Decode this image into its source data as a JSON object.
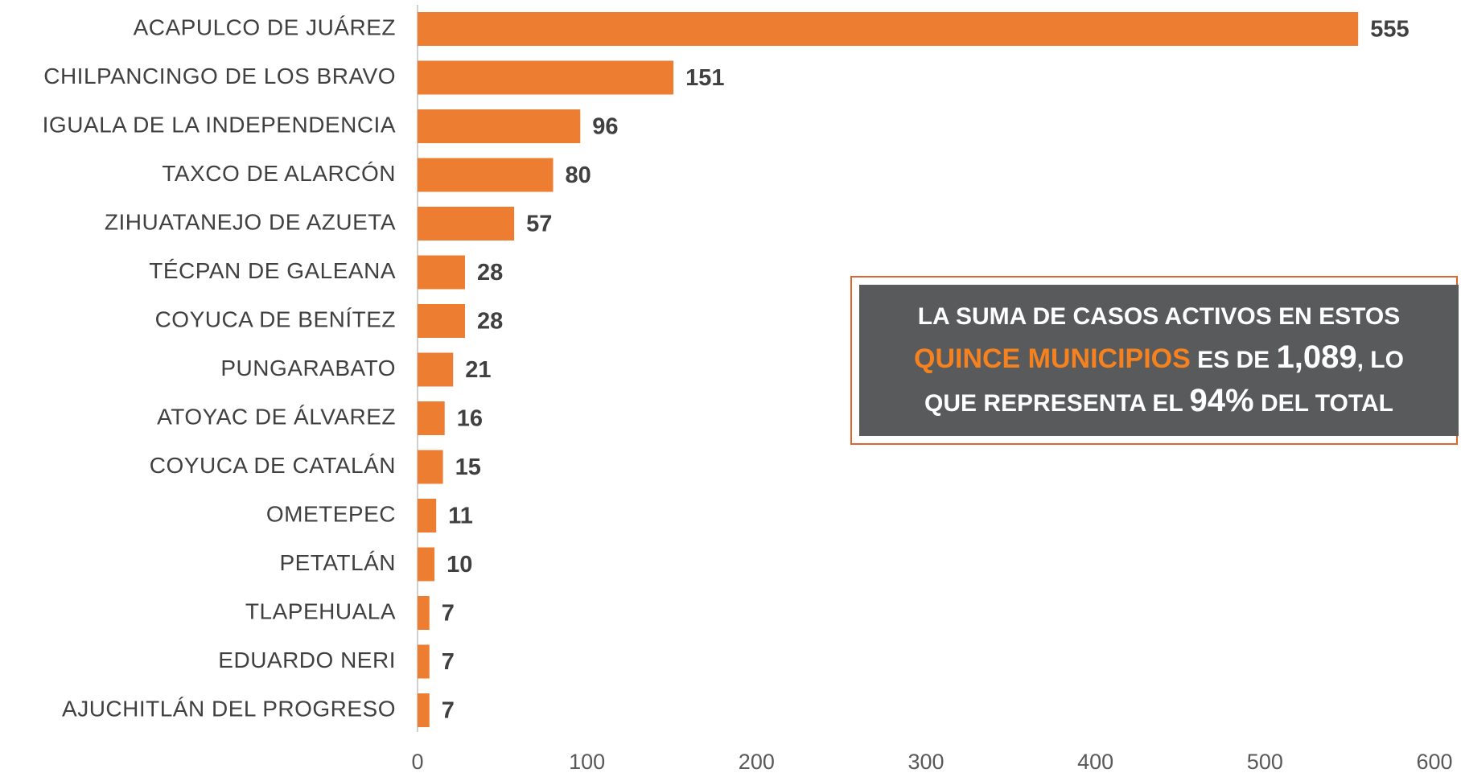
{
  "chart_data": {
    "type": "bar",
    "orientation": "horizontal",
    "color": "#ed7d31",
    "categories": [
      "ACAPULCO DE JUÁREZ",
      "CHILPANCINGO DE LOS BRAVO",
      "IGUALA DE LA INDEPENDENCIA",
      "TAXCO DE ALARCÓN",
      "ZIHUATANEJO DE AZUETA",
      "TÉCPAN DE GALEANA",
      "COYUCA DE BENÍTEZ",
      "PUNGARABATO",
      "ATOYAC DE ÁLVAREZ",
      "COYUCA DE CATALÁN",
      "OMETEPEC",
      "PETATLÁN",
      "TLAPEHUALA",
      "EDUARDO NERI",
      "AJUCHITLÁN DEL PROGRESO"
    ],
    "values": [
      555,
      151,
      96,
      80,
      57,
      28,
      28,
      21,
      16,
      15,
      11,
      10,
      7,
      7,
      7
    ],
    "xlim": [
      0,
      600
    ],
    "xticks": [
      0,
      100,
      200,
      300,
      400,
      500,
      600
    ],
    "annotation": [
      [
        "LA SUMA DE CASOS ACTIVOS EN ESTOS"
      ],
      [
        "QUINCE MUNICIPIOS",
        "ES DE",
        "1,089",
        ", LO"
      ],
      [
        "QUE REPRESENTA EL",
        "94%",
        "DEL TOTAL"
      ]
    ]
  }
}
